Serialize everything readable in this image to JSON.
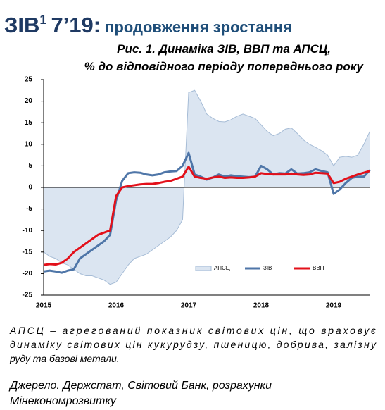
{
  "header": {
    "title_main": "ЗІВ",
    "title_sup": "1",
    "title_date": "7’19:",
    "title_sub": "продовження зростання",
    "caption": [
      "Рис. 1. Динаміка ЗІВ, ВВП та АПСЦ,",
      "% до відповідного періоду попереднього року"
    ]
  },
  "chart_data": {
    "type": "line",
    "categories": [
      "2015",
      null,
      null,
      null,
      null,
      null,
      null,
      null,
      null,
      null,
      null,
      null,
      "2016",
      null,
      null,
      null,
      null,
      null,
      null,
      null,
      null,
      null,
      null,
      null,
      "2017",
      null,
      null,
      null,
      null,
      null,
      null,
      null,
      null,
      null,
      null,
      null,
      "2018",
      null,
      null,
      null,
      null,
      null,
      null,
      null,
      null,
      null,
      null,
      null,
      "2019",
      null,
      null,
      null,
      null,
      null,
      null
    ],
    "series": [
      {
        "name": "АПСЦ",
        "kind": "area",
        "color": "#dbe5f1",
        "edge": "#a6bcd6",
        "values": [
          -15,
          -16,
          -16.5,
          -17.5,
          -18,
          -19,
          -20,
          -20.5,
          -20.5,
          -21,
          -21.5,
          -22.5,
          -22,
          -20,
          -18,
          -16.5,
          -16,
          -15.5,
          -14.5,
          -13.5,
          -12.5,
          -11.5,
          -10,
          -7.5,
          22,
          22.5,
          20,
          17,
          16,
          15.3,
          15.2,
          15.7,
          16.5,
          17,
          16.5,
          16,
          14.5,
          13,
          12,
          12.5,
          13.5,
          13.8,
          12.5,
          11,
          10,
          9.3,
          8.5,
          7.5,
          5,
          7,
          7.2,
          7,
          7.5,
          10,
          13
        ]
      },
      {
        "name": "ЗІВ",
        "kind": "line",
        "color": "#4f76a8",
        "values": [
          -19.5,
          -19.3,
          -19.5,
          -19.8,
          -19.3,
          -19,
          -16.5,
          -15.5,
          -14.5,
          -13.5,
          -12.5,
          -11,
          -3,
          1.5,
          3.3,
          3.5,
          3.4,
          3,
          2.8,
          3,
          3.5,
          3.7,
          3.8,
          5,
          8,
          3,
          2.5,
          1.8,
          2.3,
          3,
          2.5,
          2.8,
          2.6,
          2.5,
          2.4,
          2.5,
          5,
          4.2,
          3,
          3.3,
          3.2,
          4.2,
          3.2,
          3.3,
          3.5,
          4.2,
          3.8,
          3.5,
          -1.5,
          -0.5,
          1,
          2.2,
          2.5,
          2.5,
          4
        ]
      },
      {
        "name": "ВВП",
        "kind": "line",
        "color": "#e3101a",
        "values": [
          -18,
          -17.8,
          -17.9,
          -17.5,
          -16.5,
          -15,
          -14,
          -13,
          -12,
          -11,
          -10.5,
          -10,
          -2,
          0,
          0.3,
          0.5,
          0.7,
          0.8,
          0.8,
          1,
          1.3,
          1.5,
          2,
          2.5,
          4.8,
          2.5,
          2.2,
          2,
          2.3,
          2.5,
          2.2,
          2.3,
          2.2,
          2.2,
          2.3,
          2.5,
          3.3,
          3.1,
          3,
          3,
          3,
          3.2,
          3,
          2.9,
          3,
          3.4,
          3.3,
          3.2,
          1,
          1.3,
          2,
          2.5,
          3,
          3.4,
          3.8
        ]
      }
    ],
    "ylim": [
      -25,
      25
    ],
    "yticks": [
      -25,
      -20,
      -15,
      -10,
      -5,
      0,
      5,
      10,
      15,
      20,
      25
    ],
    "legend": "lower right"
  },
  "notes": [
    "АПСЦ – агрегований показник світових цін, що враховує",
    "динаміку світових цін кукурудзу, пшеницю, добрива, залізну",
    "руду та базові метали."
  ],
  "source": [
    "Джерело. Держстат, Світовий Банк, розрахунки",
    "Мінекономрозвитку"
  ]
}
